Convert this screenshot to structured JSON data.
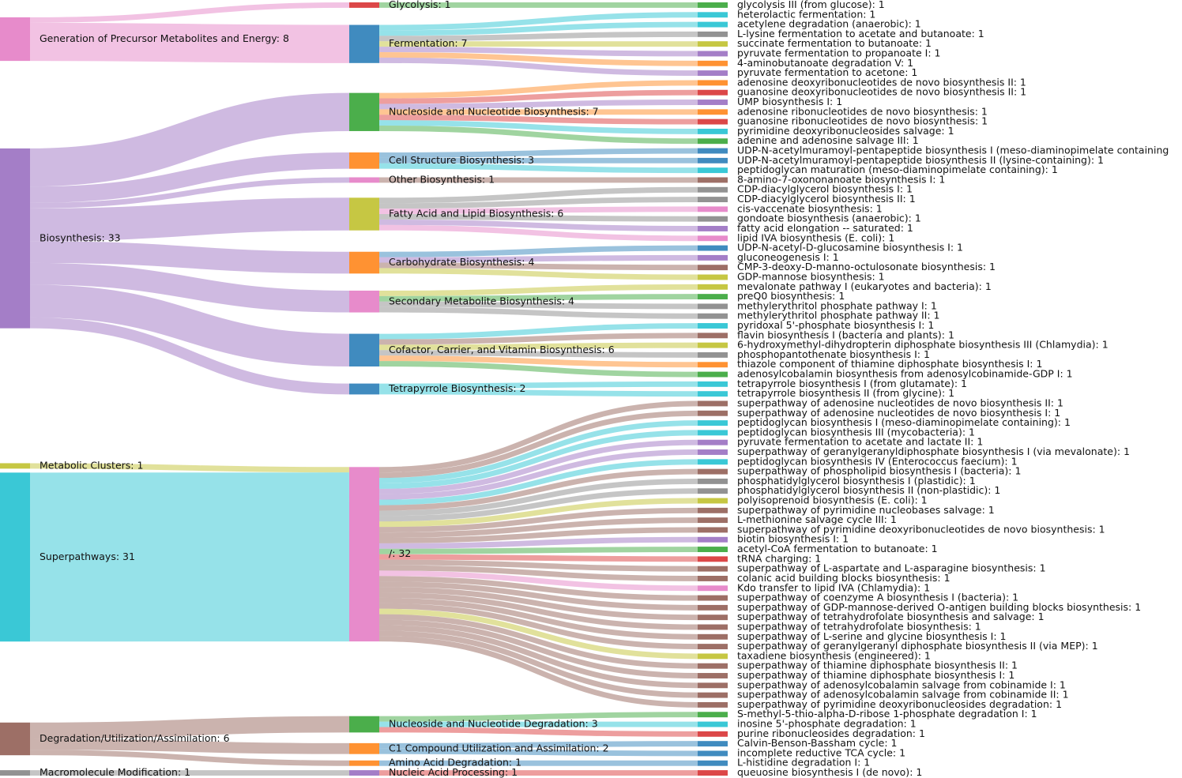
{
  "chart_data": {
    "type": "sankey",
    "nodes": [
      {
        "label": "Generation of Precursor Metabolites and Energy: 8",
        "value": 8,
        "color": "#e377c2"
      },
      {
        "label": "Biosynthesis: 33",
        "value": 33,
        "color": "#9467bd"
      },
      {
        "label": "Metabolic Clusters: 1",
        "value": 1,
        "color": "#bcbd22"
      },
      {
        "label": "Superpathways: 31",
        "value": 31,
        "color": "#17becf"
      },
      {
        "label": "Degradation/Utilization/Assimilation: 6",
        "value": 6,
        "color": "#8c564b"
      },
      {
        "label": "Macromolecule Modification: 1",
        "value": 1,
        "color": "#7f7f7f"
      },
      {
        "label": "Glycolysis: 1",
        "value": 1,
        "color": "#d62728"
      },
      {
        "label": "Fermentation: 7",
        "value": 7,
        "color": "#1f77b4"
      },
      {
        "label": "Nucleoside and Nucleotide Biosynthesis: 7",
        "value": 7,
        "color": "#2ca02c"
      },
      {
        "label": "Cell Structure Biosynthesis: 3",
        "value": 3,
        "color": "#ff7f0e"
      },
      {
        "label": "Other Biosynthesis: 1",
        "value": 1,
        "color": "#e377c2"
      },
      {
        "label": "Fatty Acid and Lipid Biosynthesis: 6",
        "value": 6,
        "color": "#bcbd22"
      },
      {
        "label": "Carbohydrate Biosynthesis: 4",
        "value": 4,
        "color": "#ff7f0e"
      },
      {
        "label": "Secondary Metabolite Biosynthesis: 4",
        "value": 4,
        "color": "#e377c2"
      },
      {
        "label": "Cofactor, Carrier, and Vitamin Biosynthesis: 6",
        "value": 6,
        "color": "#1f77b4"
      },
      {
        "label": "Tetrapyrrole Biosynthesis: 2",
        "value": 2,
        "color": "#1f77b4"
      },
      {
        "label": "/: 32",
        "value": 32,
        "color": "#e377c2"
      },
      {
        "label": "Nucleoside and Nucleotide Degradation: 3",
        "value": 3,
        "color": "#2ca02c"
      },
      {
        "label": "C1 Compound Utilization and Assimilation: 2",
        "value": 2,
        "color": "#ff7f0e"
      },
      {
        "label": "Amino Acid Degradation: 1",
        "value": 1,
        "color": "#ff7f0e"
      },
      {
        "label": "Nucleic Acid Processing: 1",
        "value": 1,
        "color": "#9467bd"
      },
      {
        "label": "glycolysis III (from glucose): 1",
        "value": 1,
        "color": "#2ca02c"
      },
      {
        "label": "heterolactic fermentation: 1",
        "value": 1,
        "color": "#17becf"
      },
      {
        "label": "acetylene degradation (anaerobic): 1",
        "value": 1,
        "color": "#17becf"
      },
      {
        "label": "L-lysine fermentation to acetate and butanoate: 1",
        "value": 1,
        "color": "#7f7f7f"
      },
      {
        "label": "succinate fermentation to butanoate: 1",
        "value": 1,
        "color": "#bcbd22"
      },
      {
        "label": "pyruvate fermentation to propanoate I: 1",
        "value": 1,
        "color": "#9467bd"
      },
      {
        "label": "4-aminobutanoate degradation V: 1",
        "value": 1,
        "color": "#ff7f0e"
      },
      {
        "label": "pyruvate fermentation to acetone: 1",
        "value": 1,
        "color": "#9467bd"
      },
      {
        "label": "adenosine deoxyribonucleotides de novo biosynthesis II: 1",
        "value": 1,
        "color": "#ff7f0e"
      },
      {
        "label": "guanosine deoxyribonucleotides de novo biosynthesis II: 1",
        "value": 1,
        "color": "#d62728"
      },
      {
        "label": "UMP biosynthesis I: 1",
        "value": 1,
        "color": "#9467bd"
      },
      {
        "label": "adenosine ribonucleotides de novo biosynthesis: 1",
        "value": 1,
        "color": "#ff7f0e"
      },
      {
        "label": "guanosine ribonucleotides de novo biosynthesis: 1",
        "value": 1,
        "color": "#d62728"
      },
      {
        "label": "pyrimidine deoxyribonucleosides salvage: 1",
        "value": 1,
        "color": "#17becf"
      },
      {
        "label": "adenine and adenosine salvage III: 1",
        "value": 1,
        "color": "#2ca02c"
      },
      {
        "label": "UDP-N-acetylmuramoyl-pentapeptide biosynthesis I (meso-diaminopimelate containing",
        "value": 1,
        "color": "#1f77b4"
      },
      {
        "label": "UDP-N-acetylmuramoyl-pentapeptide biosynthesis II (lysine-containing): 1",
        "value": 1,
        "color": "#1f77b4"
      },
      {
        "label": "peptidoglycan maturation (meso-diaminopimelate containing): 1",
        "value": 1,
        "color": "#17becf"
      },
      {
        "label": "8-amino-7-oxononanoate biosynthesis I: 1",
        "value": 1,
        "color": "#8c564b"
      },
      {
        "label": "CDP-diacylglycerol biosynthesis I: 1",
        "value": 1,
        "color": "#7f7f7f"
      },
      {
        "label": "CDP-diacylglycerol biosynthesis II: 1",
        "value": 1,
        "color": "#7f7f7f"
      },
      {
        "label": "cis-vaccenate biosynthesis: 1",
        "value": 1,
        "color": "#e377c2"
      },
      {
        "label": "gondoate biosynthesis (anaerobic): 1",
        "value": 1,
        "color": "#7f7f7f"
      },
      {
        "label": "fatty acid elongation -- saturated: 1",
        "value": 1,
        "color": "#9467bd"
      },
      {
        "label": "lipid IVA biosynthesis (E. coli): 1",
        "value": 1,
        "color": "#e377c2"
      },
      {
        "label": "UDP-N-acetyl-D-glucosamine biosynthesis I: 1",
        "value": 1,
        "color": "#1f77b4"
      },
      {
        "label": "gluconeogenesis I: 1",
        "value": 1,
        "color": "#9467bd"
      },
      {
        "label": "CMP-3-deoxy-D-manno-octulosonate biosynthesis: 1",
        "value": 1,
        "color": "#8c564b"
      },
      {
        "label": "GDP-mannose biosynthesis: 1",
        "value": 1,
        "color": "#bcbd22"
      },
      {
        "label": "mevalonate pathway I (eukaryotes and bacteria): 1",
        "value": 1,
        "color": "#bcbd22"
      },
      {
        "label": "preQ0 biosynthesis: 1",
        "value": 1,
        "color": "#2ca02c"
      },
      {
        "label": "methylerythritol phosphate pathway I: 1",
        "value": 1,
        "color": "#7f7f7f"
      },
      {
        "label": "methylerythritol phosphate pathway II: 1",
        "value": 1,
        "color": "#7f7f7f"
      },
      {
        "label": "pyridoxal 5'-phosphate biosynthesis I: 1",
        "value": 1,
        "color": "#17becf"
      },
      {
        "label": "flavin biosynthesis I (bacteria and plants): 1",
        "value": 1,
        "color": "#8c564b"
      },
      {
        "label": "6-hydroxymethyl-dihydropterin diphosphate biosynthesis III (Chlamydia): 1",
        "value": 1,
        "color": "#bcbd22"
      },
      {
        "label": "phosphopantothenate biosynthesis I: 1",
        "value": 1,
        "color": "#7f7f7f"
      },
      {
        "label": "thiazole component of thiamine diphosphate biosynthesis I: 1",
        "value": 1,
        "color": "#ff7f0e"
      },
      {
        "label": "adenosylcobalamin biosynthesis from adenosylcobinamide-GDP I: 1",
        "value": 1,
        "color": "#2ca02c"
      },
      {
        "label": "tetrapyrrole biosynthesis I (from glutamate): 1",
        "value": 1,
        "color": "#17becf"
      },
      {
        "label": "tetrapyrrole biosynthesis II (from glycine): 1",
        "value": 1,
        "color": "#17becf"
      },
      {
        "label": "superpathway of adenosine nucleotides de novo biosynthesis II: 1",
        "value": 1,
        "color": "#8c564b"
      },
      {
        "label": "superpathway of adenosine nucleotides de novo biosynthesis I: 1",
        "value": 1,
        "color": "#8c564b"
      },
      {
        "label": "peptidoglycan biosynthesis I (meso-diaminopimelate containing): 1",
        "value": 1,
        "color": "#17becf"
      },
      {
        "label": "peptidoglycan biosynthesis III (mycobacteria): 1",
        "value": 1,
        "color": "#17becf"
      },
      {
        "label": "pyruvate fermentation to acetate and lactate II: 1",
        "value": 1,
        "color": "#9467bd"
      },
      {
        "label": "superpathway of geranylgeranyldiphosphate biosynthesis I (via mevalonate): 1",
        "value": 1,
        "color": "#9467bd"
      },
      {
        "label": "peptidoglycan biosynthesis IV (Enterococcus faecium): 1",
        "value": 1,
        "color": "#17becf"
      },
      {
        "label": "superpathway of phospholipid biosynthesis I (bacteria): 1",
        "value": 1,
        "color": "#8c564b"
      },
      {
        "label": "phosphatidylglycerol biosynthesis I (plastidic): 1",
        "value": 1,
        "color": "#7f7f7f"
      },
      {
        "label": "phosphatidylglycerol biosynthesis II (non-plastidic): 1",
        "value": 1,
        "color": "#7f7f7f"
      },
      {
        "label": "polyisoprenoid biosynthesis (E. coli): 1",
        "value": 1,
        "color": "#bcbd22"
      },
      {
        "label": "superpathway of pyrimidine nucleobases salvage: 1",
        "value": 1,
        "color": "#8c564b"
      },
      {
        "label": "L-methionine salvage cycle III: 1",
        "value": 1,
        "color": "#8c564b"
      },
      {
        "label": "superpathway of pyrimidine deoxyribonucleotides de novo biosynthesis: 1",
        "value": 1,
        "color": "#8c564b"
      },
      {
        "label": "biotin biosynthesis I: 1",
        "value": 1,
        "color": "#9467bd"
      },
      {
        "label": "acetyl-CoA fermentation to butanoate: 1",
        "value": 1,
        "color": "#2ca02c"
      },
      {
        "label": "tRNA charging: 1",
        "value": 1,
        "color": "#d62728"
      },
      {
        "label": "superpathway of L-aspartate and L-asparagine biosynthesis: 1",
        "value": 1,
        "color": "#8c564b"
      },
      {
        "label": "colanic acid building blocks biosynthesis: 1",
        "value": 1,
        "color": "#8c564b"
      },
      {
        "label": "Kdo transfer to lipid IVA (Chlamydia): 1",
        "value": 1,
        "color": "#e377c2"
      },
      {
        "label": "superpathway of coenzyme A biosynthesis I (bacteria): 1",
        "value": 1,
        "color": "#8c564b"
      },
      {
        "label": "superpathway of GDP-mannose-derived O-antigen building blocks biosynthesis: 1",
        "value": 1,
        "color": "#8c564b"
      },
      {
        "label": "superpathway of tetrahydrofolate biosynthesis and salvage: 1",
        "value": 1,
        "color": "#8c564b"
      },
      {
        "label": "superpathway of tetrahydrofolate biosynthesis: 1",
        "value": 1,
        "color": "#8c564b"
      },
      {
        "label": "superpathway of L-serine and glycine biosynthesis I: 1",
        "value": 1,
        "color": "#8c564b"
      },
      {
        "label": "superpathway of geranylgeranyl diphosphate biosynthesis II (via MEP): 1",
        "value": 1,
        "color": "#8c564b"
      },
      {
        "label": "taxadiene biosynthesis (engineered): 1",
        "value": 1,
        "color": "#bcbd22"
      },
      {
        "label": "superpathway of thiamine diphosphate biosynthesis II: 1",
        "value": 1,
        "color": "#8c564b"
      },
      {
        "label": "superpathway of thiamine diphosphate biosynthesis I: 1",
        "value": 1,
        "color": "#8c564b"
      },
      {
        "label": "superpathway of adenosylcobalamin salvage from cobinamide I: 1",
        "value": 1,
        "color": "#8c564b"
      },
      {
        "label": "superpathway of adenosylcobalamin salvage from cobinamide II: 1",
        "value": 1,
        "color": "#8c564b"
      },
      {
        "label": "superpathway of pyrimidine deoxyribonucleosides degradation: 1",
        "value": 1,
        "color": "#8c564b"
      },
      {
        "label": "S-methyl-5-thio-alpha-D-ribose 1-phosphate degradation I: 1",
        "value": 1,
        "color": "#2ca02c"
      },
      {
        "label": "inosine 5'-phosphate degradation: 1",
        "value": 1,
        "color": "#17becf"
      },
      {
        "label": "purine ribonucleosides degradation: 1",
        "value": 1,
        "color": "#d62728"
      },
      {
        "label": "Calvin-Benson-Bassham cycle: 1",
        "value": 1,
        "color": "#1f77b4"
      },
      {
        "label": "incomplete reductive TCA cycle: 1",
        "value": 1,
        "color": "#1f77b4"
      },
      {
        "label": "L-histidine degradation I: 1",
        "value": 1,
        "color": "#1f77b4"
      },
      {
        "label": "queuosine biosynthesis I (de novo): 1",
        "value": 1,
        "color": "#d62728"
      }
    ],
    "links": {
      "source": [
        0,
        0,
        1,
        1,
        1,
        1,
        1,
        1,
        1,
        1,
        2,
        3,
        4,
        4,
        4,
        5,
        6,
        7,
        7,
        7,
        7,
        7,
        7,
        7,
        8,
        8,
        8,
        8,
        8,
        8,
        8,
        9,
        9,
        9,
        10,
        11,
        11,
        11,
        11,
        11,
        11,
        12,
        12,
        12,
        12,
        13,
        13,
        13,
        13,
        14,
        14,
        14,
        14,
        14,
        14,
        15,
        15,
        16,
        16,
        16,
        16,
        16,
        16,
        16,
        16,
        16,
        16,
        16,
        16,
        16,
        16,
        16,
        16,
        16,
        16,
        16,
        16,
        16,
        16,
        16,
        16,
        16,
        16,
        16,
        16,
        16,
        16,
        16,
        16,
        17,
        17,
        17,
        18,
        18,
        19,
        20
      ],
      "target": [
        6,
        7,
        8,
        9,
        10,
        11,
        12,
        13,
        14,
        15,
        16,
        16,
        17,
        18,
        19,
        20,
        21,
        22,
        23,
        24,
        25,
        26,
        27,
        28,
        29,
        30,
        31,
        32,
        33,
        34,
        35,
        36,
        37,
        38,
        39,
        40,
        41,
        42,
        43,
        44,
        45,
        46,
        47,
        48,
        49,
        50,
        51,
        52,
        53,
        54,
        55,
        56,
        57,
        58,
        59,
        60,
        61,
        62,
        63,
        64,
        65,
        66,
        67,
        68,
        69,
        70,
        71,
        72,
        73,
        74,
        75,
        76,
        77,
        78,
        79,
        80,
        81,
        82,
        83,
        84,
        85,
        86,
        87,
        88,
        89,
        90,
        91,
        92,
        93,
        94,
        95,
        96,
        97,
        98,
        99,
        100
      ],
      "value": [
        1,
        7,
        7,
        3,
        1,
        6,
        4,
        4,
        6,
        2,
        1,
        31,
        3,
        2,
        1,
        1,
        1,
        1,
        1,
        1,
        1,
        1,
        1,
        1,
        1,
        1,
        1,
        1,
        1,
        1,
        1,
        1,
        1,
        1,
        1,
        1,
        1,
        1,
        1,
        1,
        1,
        1,
        1,
        1,
        1,
        1,
        1,
        1,
        1,
        1,
        1,
        1,
        1,
        1,
        1,
        1,
        1,
        1,
        1,
        1,
        1,
        1,
        1,
        1,
        1,
        1,
        1,
        1,
        1,
        1,
        1,
        1,
        1,
        1,
        1,
        1,
        1,
        1,
        1,
        1,
        1,
        1,
        1,
        1,
        1,
        1,
        1,
        1,
        1,
        1,
        1,
        1,
        1,
        1,
        1,
        1
      ]
    }
  }
}
